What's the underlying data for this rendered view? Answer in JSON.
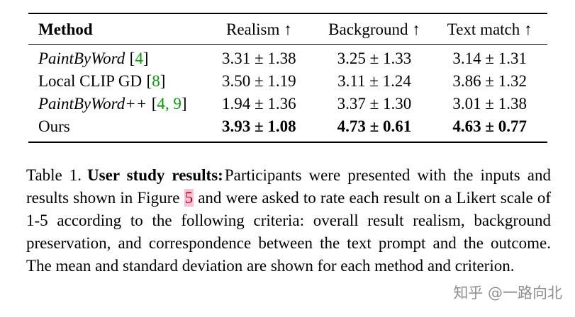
{
  "table": {
    "headers": [
      "Method",
      "Realism ↑",
      "Background ↑",
      "Text match ↑"
    ],
    "rows": [
      {
        "name": "PaintByWord",
        "cite_open": "[",
        "cite_num": "4",
        "cite_close": "]",
        "values": [
          "3.31 ± 1.38",
          "3.25 ± 1.33",
          "3.14 ± 1.31"
        ]
      },
      {
        "name": "Local CLIP GD",
        "cite_open": "[",
        "cite_num": "8",
        "cite_close": "]",
        "values": [
          "3.50 ± 1.19",
          "3.11 ± 1.24",
          "3.86 ± 1.32"
        ]
      },
      {
        "name": "PaintByWord++",
        "cite_open": "[",
        "cite_num": "4, 9",
        "cite_close": "]",
        "values": [
          "1.94 ± 1.36",
          "3.37 ± 1.30",
          "3.01 ± 1.38"
        ]
      },
      {
        "name": "Ours",
        "values": [
          "3.93 ± 1.08",
          "4.73 ± 0.61",
          "4.63 ± 0.77"
        ]
      }
    ]
  },
  "caption": {
    "label": "Table 1.",
    "title": "User study results:",
    "text1": "Participants were presented with the inputs and results shown in Figure ",
    "figure_ref": "5",
    "text2": " and were asked to rate each result on a Likert scale of 1-5 according to the following criteria: overall result realism, background preservation, and correspondence between the text prompt and the outcome. The mean and standard deviation are shown for each method and criterion."
  },
  "watermark": "知乎 @一路向北",
  "colors": {
    "cite-green": "#00A000",
    "figref-red": "#c00020",
    "figref-bg": "#f7c2d4",
    "watermark-gray": "#8f8f8f"
  }
}
